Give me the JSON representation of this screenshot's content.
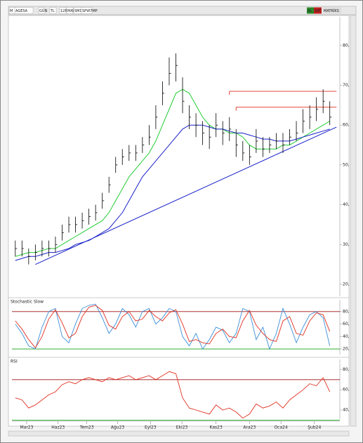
{
  "toolbar": {
    "items": [
      "M",
      "AGESA",
      "GÜN",
      "TL",
      "12R",
      "MAV",
      "SMD",
      "SPW7MP"
    ],
    "right": [
      "AL",
      "SAT",
      "MATRİKS"
    ]
  },
  "chart_data": [
    {
      "type": "ohlc",
      "color": "#000000",
      "high": [
        31,
        31,
        29,
        30,
        31,
        31,
        32,
        35,
        37,
        37,
        38,
        39,
        40,
        43,
        47,
        52,
        54,
        55,
        55,
        57,
        60,
        65,
        71,
        77,
        78,
        72,
        65,
        63,
        61,
        60,
        63,
        61,
        62,
        59,
        56,
        55,
        59,
        57,
        57,
        58,
        58,
        59,
        61,
        64,
        65,
        67,
        69,
        66
      ],
      "low": [
        27,
        27,
        25,
        26,
        27,
        27,
        28,
        31,
        33,
        33,
        34,
        35,
        36,
        39,
        43,
        48,
        50,
        51,
        51,
        53,
        55,
        59,
        65,
        70,
        71,
        63,
        59,
        57,
        55,
        54,
        57,
        55,
        56,
        52,
        51,
        50,
        53,
        52,
        53,
        54,
        53,
        55,
        56,
        58,
        59,
        61,
        63,
        60
      ],
      "close": [
        29,
        29,
        27,
        28,
        29,
        29,
        30,
        33,
        35,
        35,
        36,
        37,
        38,
        41,
        45,
        50,
        52,
        53,
        53,
        55,
        57,
        62,
        68,
        73,
        75,
        66,
        62,
        60,
        58,
        57,
        60,
        58,
        59,
        55,
        53,
        52,
        56,
        54,
        55,
        56,
        55,
        57,
        58,
        61,
        62,
        64,
        66,
        62
      ],
      "lines": [
        {
          "color": "#22cc33",
          "values": [
            27,
            27.5,
            28,
            28,
            28.5,
            29,
            29,
            30,
            31,
            32,
            33,
            34,
            35,
            36,
            38,
            41,
            44,
            47,
            49,
            51,
            53,
            56,
            60,
            64,
            68,
            69,
            68,
            65,
            62,
            60,
            59,
            59,
            58,
            58,
            57,
            55,
            54,
            54,
            54,
            54,
            55,
            55,
            56,
            57,
            58,
            59,
            60,
            61
          ]
        },
        {
          "color": "#1a22c8",
          "values": [
            26,
            26.5,
            27,
            27,
            27.5,
            28,
            28,
            28.5,
            29,
            30,
            30.5,
            31,
            32,
            33,
            34,
            36,
            38,
            41,
            44,
            47,
            49,
            51,
            53,
            55,
            57,
            59,
            60,
            60,
            60,
            59.5,
            59,
            59,
            58.5,
            58,
            58,
            57.5,
            57,
            56.5,
            56.5,
            56,
            56,
            56,
            56.5,
            57,
            57.5,
            58,
            58.5,
            59
          ]
        }
      ],
      "trendline": {
        "color": "#1a22c8",
        "x": [
          3,
          48
        ],
        "y": [
          25,
          59.5
        ]
      },
      "levels": [
        {
          "color": "#e03020",
          "y": 68.5,
          "x": [
            32,
            48
          ]
        },
        {
          "color": "#e03020",
          "y": 64.5,
          "x": [
            33,
            48
          ]
        }
      ],
      "ylim": [
        17,
        87.2
      ],
      "yticks": [
        {
          "value": 20,
          "label": "20,"
        },
        {
          "value": 30,
          "label": "30,"
        },
        {
          "value": 40,
          "label": "40,"
        },
        {
          "value": 50,
          "label": "50,"
        },
        {
          "value": 60,
          "label": "60,"
        },
        {
          "value": 70,
          "label": "70,"
        },
        {
          "value": 80,
          "label": "80,"
        }
      ]
    },
    {
      "type": "oscillator",
      "title": "Stochastic Slow",
      "series": [
        {
          "color": "#3a8fd9",
          "values": [
            60,
            45,
            25,
            20,
            55,
            80,
            85,
            40,
            30,
            60,
            85,
            90,
            92,
            70,
            45,
            60,
            85,
            75,
            55,
            80,
            85,
            60,
            70,
            85,
            80,
            40,
            25,
            45,
            20,
            35,
            55,
            50,
            30,
            45,
            85,
            80,
            35,
            55,
            20,
            45,
            85,
            60,
            30,
            55,
            75,
            80,
            70,
            25
          ]
        },
        {
          "color": "#e03020",
          "values": [
            65,
            52,
            35,
            22,
            40,
            68,
            83,
            62,
            38,
            45,
            72,
            87,
            90,
            82,
            58,
            52,
            72,
            80,
            65,
            68,
            82,
            72,
            65,
            78,
            83,
            60,
            32,
            35,
            30,
            28,
            45,
            52,
            40,
            38,
            65,
            82,
            58,
            45,
            35,
            32,
            65,
            72,
            45,
            42,
            65,
            78,
            75,
            48
          ]
        }
      ],
      "levels": [
        {
          "color": "#a01010",
          "y": 80
        },
        {
          "color": "#10a010",
          "y": 20
        }
      ],
      "ylim": [
        11,
        99
      ],
      "yticks": [
        {
          "value": 20,
          "label": "20,"
        },
        {
          "value": 40,
          "label": "40,"
        },
        {
          "value": 60,
          "label": "60,"
        },
        {
          "value": 80,
          "label": "80,"
        }
      ]
    },
    {
      "type": "oscillator",
      "title": "RSI",
      "series": [
        {
          "color": "#e03020",
          "values": [
            52,
            50,
            42,
            45,
            50,
            55,
            58,
            65,
            68,
            66,
            70,
            72,
            70,
            68,
            72,
            70,
            72,
            74,
            70,
            72,
            74,
            70,
            74,
            78,
            76,
            52,
            42,
            40,
            38,
            36,
            45,
            40,
            42,
            38,
            32,
            36,
            46,
            42,
            44,
            48,
            42,
            50,
            55,
            60,
            66,
            64,
            72,
            58
          ]
        }
      ],
      "levels": [
        {
          "color": "#a01010",
          "y": 70
        },
        {
          "color": "#10a010",
          "y": 30
        }
      ],
      "ylim": [
        31,
        90
      ],
      "yticks": [
        {
          "value": 40,
          "label": "40,"
        },
        {
          "value": 60,
          "label": "60,"
        },
        {
          "value": 80,
          "label": "80,"
        }
      ],
      "xlim": [
        -0.5,
        48.5
      ],
      "xticks": [
        {
          "value": 1.7,
          "label": "Mar23"
        },
        {
          "value": 6.4,
          "label": "Haz23"
        },
        {
          "value": 10.7,
          "label": "Tem23"
        },
        {
          "value": 15.3,
          "label": "Ağu23"
        },
        {
          "value": 20.2,
          "label": "Eyl23"
        },
        {
          "value": 24.9,
          "label": "Eki23"
        },
        {
          "value": 30,
          "label": "Kas23"
        },
        {
          "value": 35,
          "label": "Ara23"
        },
        {
          "value": 39.7,
          "label": "Oca24"
        },
        {
          "value": 44.7,
          "label": "Şub24"
        }
      ]
    }
  ]
}
